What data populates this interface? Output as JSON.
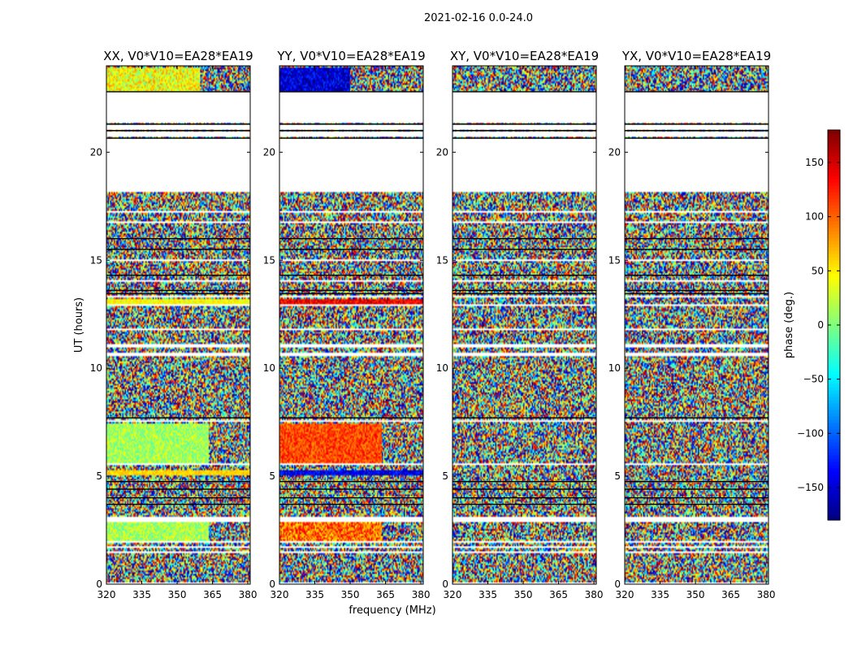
{
  "figure": {
    "suptitle": "2021-02-16 0.0-24.0",
    "xlabel": "frequency (MHz)",
    "ylabel": "UT (hours)"
  },
  "chart_data": {
    "type": "heatmap",
    "title": "2021-02-16 0.0-24.0",
    "x": {
      "label": "frequency (MHz)",
      "range": [
        320,
        381
      ],
      "ticks": [
        320,
        335,
        350,
        365,
        380
      ]
    },
    "y": {
      "label": "UT (hours)",
      "range": [
        0,
        24
      ],
      "ticks": [
        0,
        5,
        10,
        15,
        20
      ]
    },
    "colorbar": {
      "label": "phase (deg.)",
      "range": [
        -180,
        180
      ],
      "ticks": [
        -150,
        -100,
        -50,
        0,
        50,
        100,
        150
      ],
      "colormap": [
        "#00007f",
        "#0000ff",
        "#007fff",
        "#00ffff",
        "#7fff7f",
        "#ffff00",
        "#ff7f00",
        "#ff0000",
        "#7f0000"
      ]
    },
    "panels": [
      {
        "title": "XX, V0*V10=EA28*EA19",
        "coherent_bands": [
          {
            "t0": 1.9,
            "t1": 2.85,
            "f1": 363.5,
            "value": 15,
            "spread": 38
          },
          {
            "t0": 5.05,
            "t1": 5.3,
            "f1": 381,
            "value": 60,
            "spread": 14
          },
          {
            "t0": 5.6,
            "t1": 7.45,
            "f1": 363.5,
            "value": 12,
            "spread": 32
          },
          {
            "t0": 13.0,
            "t1": 13.2,
            "f1": 381,
            "value": 45,
            "spread": 20
          },
          {
            "t0": 22.8,
            "t1": 23.9,
            "f1": 360,
            "value": 40,
            "spread": 45
          }
        ]
      },
      {
        "title": "YY, V0*V10=EA28*EA19",
        "coherent_bands": [
          {
            "t0": 1.9,
            "t1": 2.85,
            "f1": 363.5,
            "value": 95,
            "spread": 50
          },
          {
            "t0": 5.05,
            "t1": 5.3,
            "f1": 381,
            "value": -140,
            "spread": 30
          },
          {
            "t0": 5.6,
            "t1": 7.45,
            "f1": 363.5,
            "value": 110,
            "spread": 32
          },
          {
            "t0": 13.0,
            "t1": 13.2,
            "f1": 381,
            "value": 140,
            "spread": 30
          },
          {
            "t0": 22.8,
            "t1": 23.9,
            "f1": 350,
            "value": -150,
            "spread": 40
          }
        ]
      },
      {
        "title": "XY, V0*V10=EA28*EA19",
        "coherent_bands": []
      },
      {
        "title": "YX, V0*V10=EA28*EA19",
        "coherent_bands": []
      }
    ],
    "flagged_ut_bands": [
      [
        0.0,
        0.05
      ],
      [
        1.45,
        1.5
      ],
      [
        1.68,
        1.78
      ],
      [
        1.92,
        1.97
      ],
      [
        2.9,
        3.12
      ],
      [
        5.5,
        5.58
      ],
      [
        7.5,
        7.58
      ],
      [
        8.6,
        8.65
      ],
      [
        9.5,
        9.55
      ],
      [
        10.55,
        10.68
      ],
      [
        11.0,
        11.12
      ],
      [
        11.8,
        11.85
      ],
      [
        12.9,
        12.97
      ],
      [
        13.3,
        13.37
      ],
      [
        14.0,
        14.05
      ],
      [
        15.0,
        15.05
      ],
      [
        16.75,
        16.8
      ],
      [
        17.2,
        17.25
      ],
      [
        17.65,
        17.7
      ],
      [
        18.2,
        20.6
      ],
      [
        20.7,
        20.95
      ],
      [
        21.05,
        21.25
      ],
      [
        21.35,
        22.8
      ]
    ],
    "dark_ut_lines": [
      3.7,
      4.0,
      4.4,
      4.75,
      7.7,
      13.45,
      13.6,
      14.3,
      15.5,
      16.0,
      20.65,
      21.0,
      21.3,
      22.8
    ],
    "grid": false
  }
}
